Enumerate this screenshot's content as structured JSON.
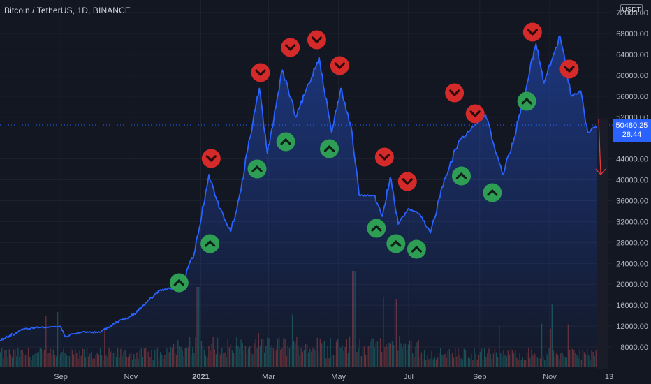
{
  "header": {
    "symbol_title": "Bitcoin / TetherUS, 1D, BINANCE",
    "currency": "USDT",
    "last_price": "50480.25",
    "countdown": "28:44"
  },
  "colors": {
    "background": "#131722",
    "price_line": "#2962ff",
    "up_signal": "#2e9e55",
    "down_signal": "#d42a2a",
    "volume_up": "#26a69a",
    "volume_down": "#ef5350",
    "axis_text": "#b2b5be",
    "projection_arrow": "#e03a3a"
  },
  "chart_data": {
    "type": "line",
    "title": "Bitcoin / TetherUS, 1D, BINANCE",
    "xlabel": "",
    "ylabel": "",
    "ylim": [
      5000,
      72000
    ],
    "x_ticks": [
      "Sep",
      "Nov",
      "2021",
      "Mar",
      "May",
      "Jul",
      "Sep",
      "Nov",
      "13"
    ],
    "y_ticks": [
      "8000.00",
      "12000.00",
      "16000.00",
      "20000.00",
      "24000.00",
      "28000.00",
      "32000.00",
      "36000.00",
      "40000.00",
      "44000.00",
      "48000.00",
      "52000.00",
      "56000.00",
      "60000.00",
      "64000.00",
      "68000.00",
      "72000.00"
    ],
    "series": [
      {
        "x": [
          "2020-07-10",
          "2020-08-01",
          "2020-08-15",
          "2020-09-01",
          "2020-09-05",
          "2020-09-20",
          "2020-10-05",
          "2020-10-20",
          "2020-11-01",
          "2020-11-15",
          "2020-11-25",
          "2020-12-05",
          "2020-12-15",
          "2020-12-27",
          "2021-01-08",
          "2021-01-15",
          "2021-01-27",
          "2021-02-05",
          "2021-02-10",
          "2021-02-21",
          "2021-02-28",
          "2021-03-13",
          "2021-03-25",
          "2021-04-14",
          "2021-04-25",
          "2021-05-03",
          "2021-05-12",
          "2021-05-19",
          "2021-06-01",
          "2021-06-08",
          "2021-06-15",
          "2021-06-22",
          "2021-07-01",
          "2021-07-10",
          "2021-07-20",
          "2021-08-01",
          "2021-08-14",
          "2021-09-06",
          "2021-09-21",
          "2021-10-01",
          "2021-10-20",
          "2021-10-27",
          "2021-11-10",
          "2021-11-20",
          "2021-11-28",
          "2021-12-04",
          "2021-12-13"
        ],
        "values": [
          9300,
          11500,
          11800,
          11900,
          10000,
          10900,
          10800,
          12800,
          13800,
          16500,
          18700,
          19200,
          19400,
          26500,
          41000,
          36000,
          30000,
          38000,
          45000,
          57500,
          45000,
          61000,
          52000,
          63500,
          49000,
          57500,
          50000,
          37000,
          37000,
          33000,
          40500,
          31500,
          34500,
          33500,
          29800,
          40000,
          47500,
          52500,
          41000,
          48000,
          66000,
          58500,
          67500,
          56000,
          57000,
          49000,
          50480
        ]
      }
    ],
    "signals": {
      "buy_dates": [
        "2020-12-13",
        "2021-01-09",
        "2021-02-19",
        "2021-03-16",
        "2021-04-23",
        "2021-06-03",
        "2021-06-20",
        "2021-07-08",
        "2021-08-16",
        "2021-09-12",
        "2021-10-12"
      ],
      "sell_dates": [
        "2021-01-10",
        "2021-02-22",
        "2021-03-20",
        "2021-04-12",
        "2021-05-02",
        "2021-06-10",
        "2021-06-30",
        "2021-08-10",
        "2021-08-28",
        "2021-10-17",
        "2021-11-18"
      ]
    },
    "projection": {
      "from_date": "2021-12-13",
      "from_value": 50480,
      "to_value": 41000
    }
  }
}
